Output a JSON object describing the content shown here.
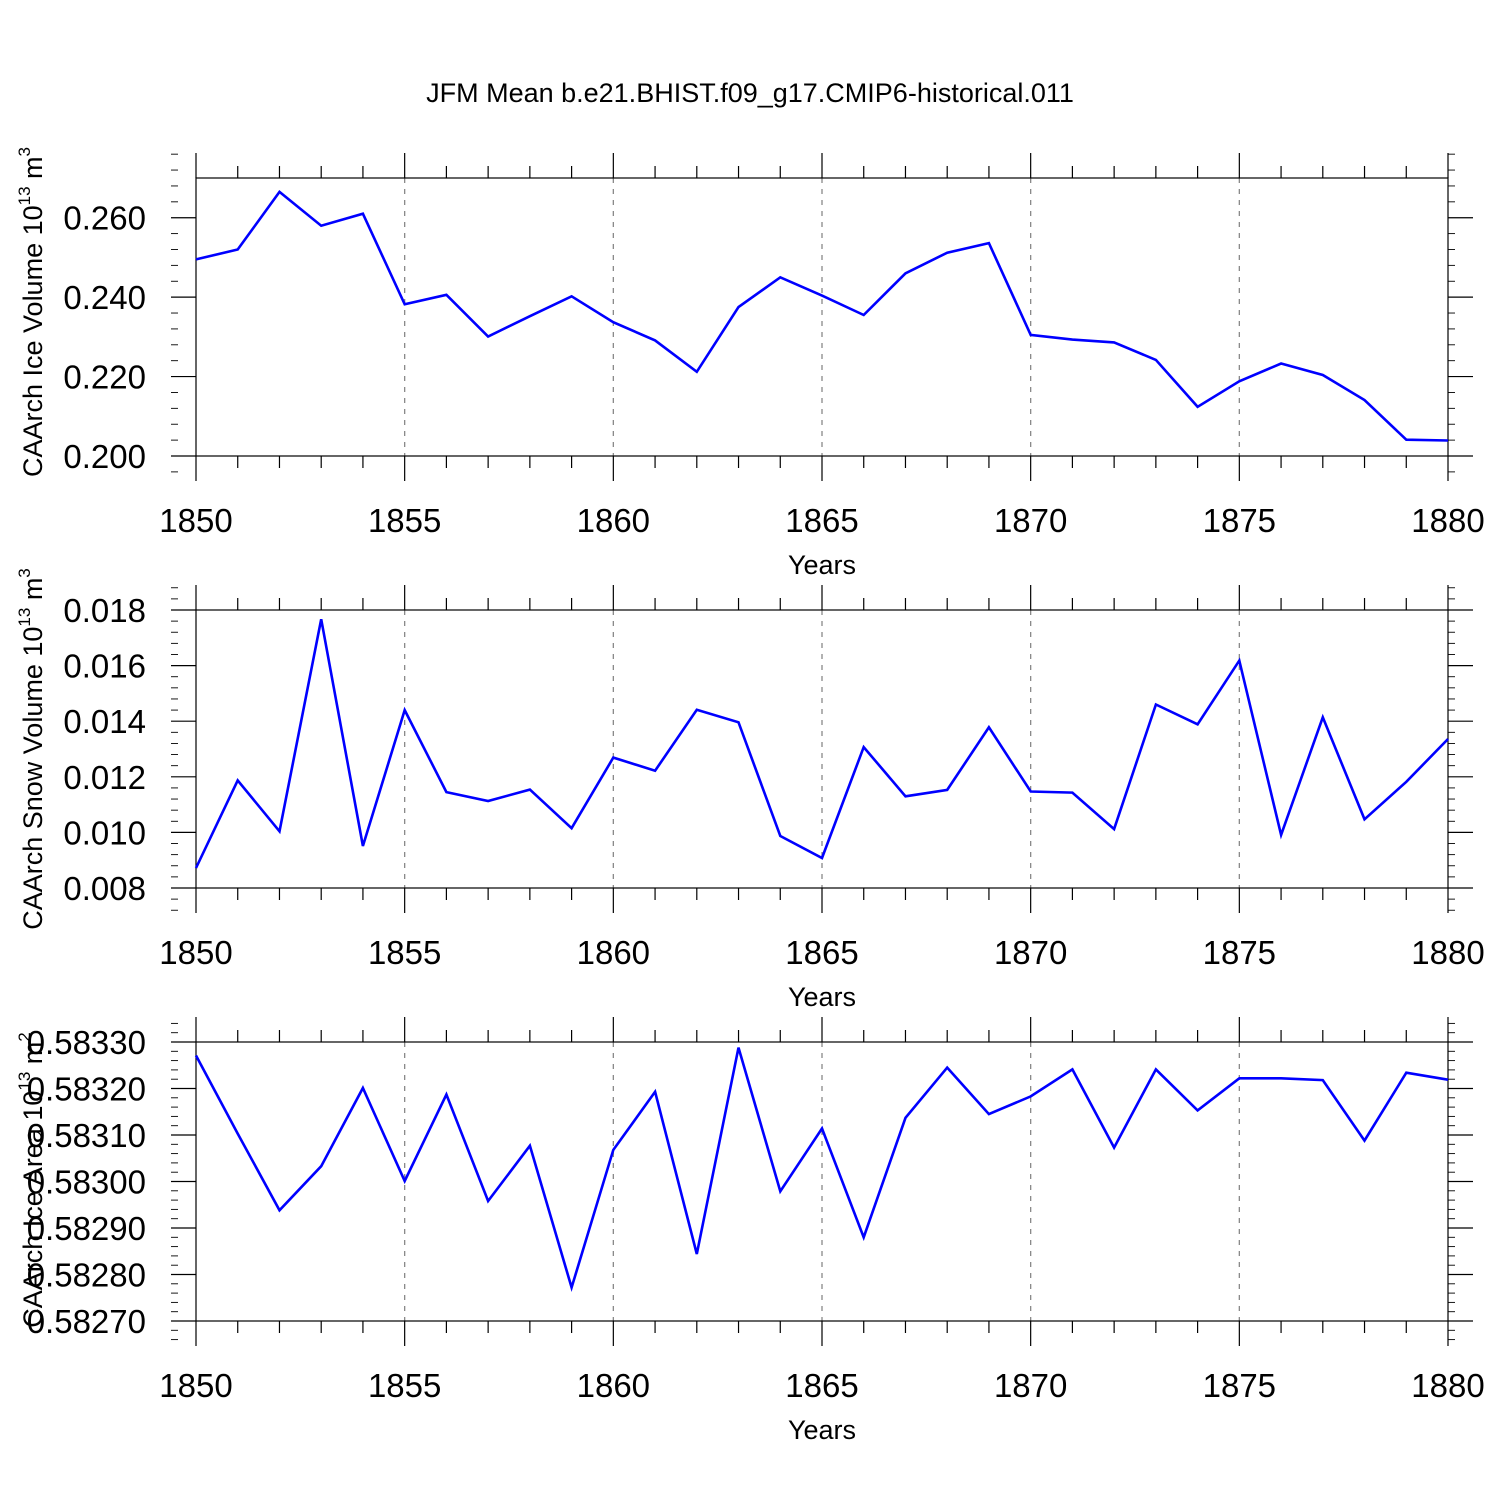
{
  "title": "JFM Mean b.e21.BHIST.f09_g17.CMIP6-historical.011",
  "chart_data": [
    {
      "type": "line",
      "title": "JFM Mean b.e21.BHIST.f09_g17.CMIP6-historical.011",
      "xlabel": "Years",
      "ylabel": "CAArch Ice Volume 10",
      "ylabel_exponent": "13",
      "ylabel_unit": "m",
      "ylabel_unit_exponent": "3",
      "xlim": [
        1850,
        1880
      ],
      "ylim": [
        0.2,
        0.27
      ],
      "xticks": [
        1850,
        1855,
        1860,
        1865,
        1870,
        1875,
        1880
      ],
      "yticks": [
        0.2,
        0.22,
        0.24,
        0.26
      ],
      "ytick_labels": [
        "0.200",
        "0.220",
        "0.240",
        "0.260"
      ],
      "color": "#0000ff",
      "series": [
        {
          "name": "CAArch Ice Volume",
          "x": [
            1850,
            1851,
            1852,
            1853,
            1854,
            1855,
            1856,
            1857,
            1858,
            1859,
            1860,
            1861,
            1862,
            1863,
            1864,
            1865,
            1866,
            1867,
            1868,
            1869,
            1870,
            1871,
            1872,
            1873,
            1874,
            1875,
            1876,
            1877,
            1878,
            1879,
            1880
          ],
          "values": [
            0.2495,
            0.252,
            0.2665,
            0.258,
            0.261,
            0.2382,
            0.2406,
            0.2301,
            0.2352,
            0.2402,
            0.2337,
            0.2291,
            0.2212,
            0.2375,
            0.245,
            0.2404,
            0.2355,
            0.246,
            0.2512,
            0.2536,
            0.2305,
            0.2293,
            0.2286,
            0.2242,
            0.2124,
            0.2188,
            0.2233,
            0.2204,
            0.2141,
            0.2041,
            0.2039
          ]
        }
      ]
    },
    {
      "type": "line",
      "title": "",
      "xlabel": "Years",
      "ylabel": "CAArch Snow Volume 10",
      "ylabel_exponent": "13",
      "ylabel_unit": "m",
      "ylabel_unit_exponent": "3",
      "xlim": [
        1850,
        1880
      ],
      "ylim": [
        0.008,
        0.018
      ],
      "xticks": [
        1850,
        1855,
        1860,
        1865,
        1870,
        1875,
        1880
      ],
      "yticks": [
        0.008,
        0.01,
        0.012,
        0.014,
        0.016,
        0.018
      ],
      "ytick_labels": [
        "0.008",
        "0.010",
        "0.012",
        "0.014",
        "0.016",
        "0.018"
      ],
      "color": "#0000ff",
      "series": [
        {
          "name": "CAArch Snow Volume",
          "x": [
            1850,
            1851,
            1852,
            1853,
            1854,
            1855,
            1856,
            1857,
            1858,
            1859,
            1860,
            1861,
            1862,
            1863,
            1864,
            1865,
            1866,
            1867,
            1868,
            1869,
            1870,
            1871,
            1872,
            1873,
            1874,
            1875,
            1876,
            1877,
            1878,
            1879,
            1880
          ],
          "values": [
            0.00872,
            0.01187,
            0.01004,
            0.01767,
            0.00951,
            0.0144,
            0.01145,
            0.01113,
            0.01154,
            0.01015,
            0.01269,
            0.01222,
            0.01441,
            0.01396,
            0.00987,
            0.00908,
            0.01307,
            0.0113,
            0.01153,
            0.01378,
            0.01147,
            0.01143,
            0.01012,
            0.0146,
            0.01389,
            0.01618,
            0.00991,
            0.01414,
            0.01047,
            0.01182,
            0.01336
          ]
        }
      ]
    },
    {
      "type": "line",
      "title": "",
      "xlabel": "Years",
      "ylabel": "CAArch Ice Area 10",
      "ylabel_exponent": "13",
      "ylabel_unit": "m",
      "ylabel_unit_exponent": "2",
      "xlim": [
        1850,
        1880
      ],
      "ylim": [
        0.5827,
        0.5833
      ],
      "xticks": [
        1850,
        1855,
        1860,
        1865,
        1870,
        1875,
        1880
      ],
      "yticks": [
        0.5827,
        0.5828,
        0.5829,
        0.583,
        0.5831,
        0.5832,
        0.5833
      ],
      "ytick_labels": [
        "0.58270",
        "0.58280",
        "0.58290",
        "0.58300",
        "0.58310",
        "0.58320",
        "0.58330"
      ],
      "color": "#0000ff",
      "series": [
        {
          "name": "CAArch Ice Area",
          "x": [
            1850,
            1851,
            1852,
            1853,
            1854,
            1855,
            1856,
            1857,
            1858,
            1859,
            1860,
            1861,
            1862,
            1863,
            1864,
            1865,
            1866,
            1867,
            1868,
            1869,
            1870,
            1871,
            1872,
            1873,
            1874,
            1875,
            1876,
            1877,
            1878,
            1879,
            1880
          ],
          "values": [
            0.583271,
            0.583103,
            0.582938,
            0.583033,
            0.583201,
            0.583001,
            0.583187,
            0.582958,
            0.583077,
            0.582772,
            0.583068,
            0.583193,
            0.582844,
            0.583288,
            0.582979,
            0.583114,
            0.58288,
            0.583137,
            0.583245,
            0.583145,
            0.583183,
            0.583241,
            0.583073,
            0.583241,
            0.583153,
            0.583222,
            0.583222,
            0.583218,
            0.583088,
            0.583234,
            0.583219
          ]
        }
      ]
    }
  ]
}
